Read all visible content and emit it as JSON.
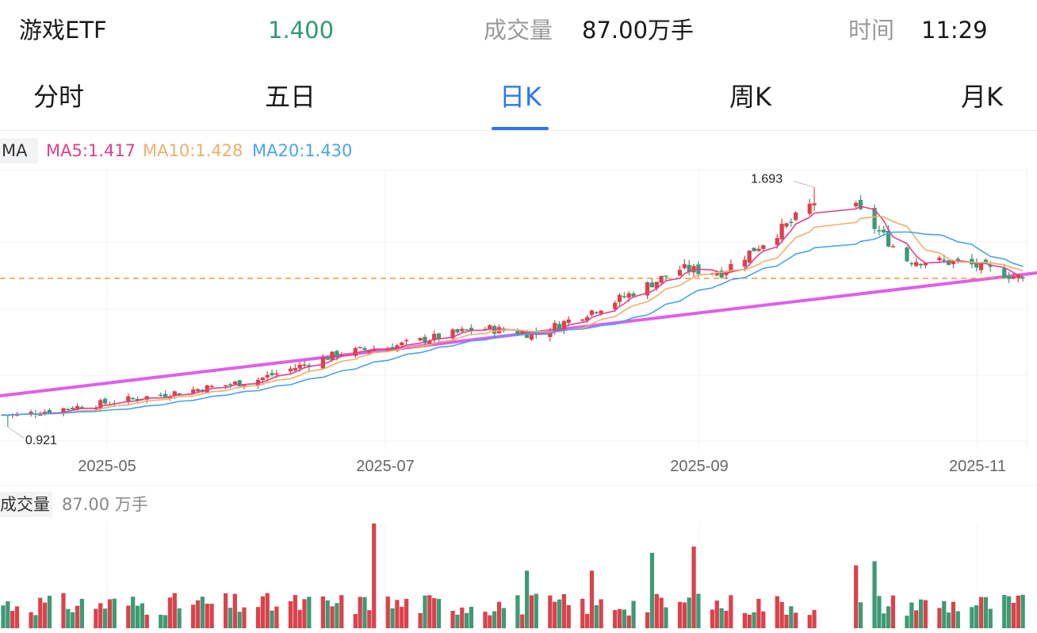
{
  "header": {
    "name": "游戏ETF",
    "price": "1.400",
    "volume_label": "成交量",
    "volume_value": "87.00万手",
    "time_label": "时间",
    "time_value": "11:29"
  },
  "tabs": [
    "分时",
    "五日",
    "日K",
    "周K",
    "月K"
  ],
  "active_tab": "日K",
  "ma": {
    "box": "MA",
    "ma5": "MA5:1.417",
    "ma10": "MA10:1.428",
    "ma20": "MA20:1.430"
  },
  "volume_panel": {
    "label": "成交量",
    "value": "87.00 万手"
  },
  "colors": {
    "up": "#d9434b",
    "down": "#3e9a74",
    "accent": "#2f74f2",
    "ma5": "#e0408c",
    "ma10": "#efaf6b",
    "ma20": "#4aa3f0",
    "trendline": "#e05fe8",
    "last_price_line": "#f09a3c"
  },
  "chart_data": {
    "type": "candlestick",
    "x_ticks": [
      "2025-05",
      "2025-07",
      "2025-09",
      "2025-11"
    ],
    "high_label": "1.693",
    "low_label": "0.921",
    "price_keypoints": [
      {
        "date": "2025-04-11",
        "close": 0.96
      },
      {
        "date": "2025-05-01",
        "close": 1.0
      },
      {
        "date": "2025-06-01",
        "close": 1.07
      },
      {
        "date": "2025-06-20",
        "close": 1.16
      },
      {
        "date": "2025-07-01",
        "close": 1.18
      },
      {
        "date": "2025-07-20",
        "close": 1.24
      },
      {
        "date": "2025-08-01",
        "close": 1.22
      },
      {
        "date": "2025-08-20",
        "close": 1.34
      },
      {
        "date": "2025-09-01",
        "close": 1.43
      },
      {
        "date": "2025-09-10",
        "close": 1.42
      },
      {
        "date": "2025-09-25",
        "close": 1.58
      },
      {
        "date": "2025-10-01",
        "close": 1.66
      },
      {
        "date": "2025-10-08",
        "close": 1.64
      },
      {
        "date": "2025-10-20",
        "close": 1.46
      },
      {
        "date": "2025-11-01",
        "close": 1.45
      },
      {
        "date": "2025-11-14",
        "close": 1.4
      }
    ],
    "last_price": 1.4,
    "volume_note": "daily volume bars, latest 87.00万手"
  }
}
